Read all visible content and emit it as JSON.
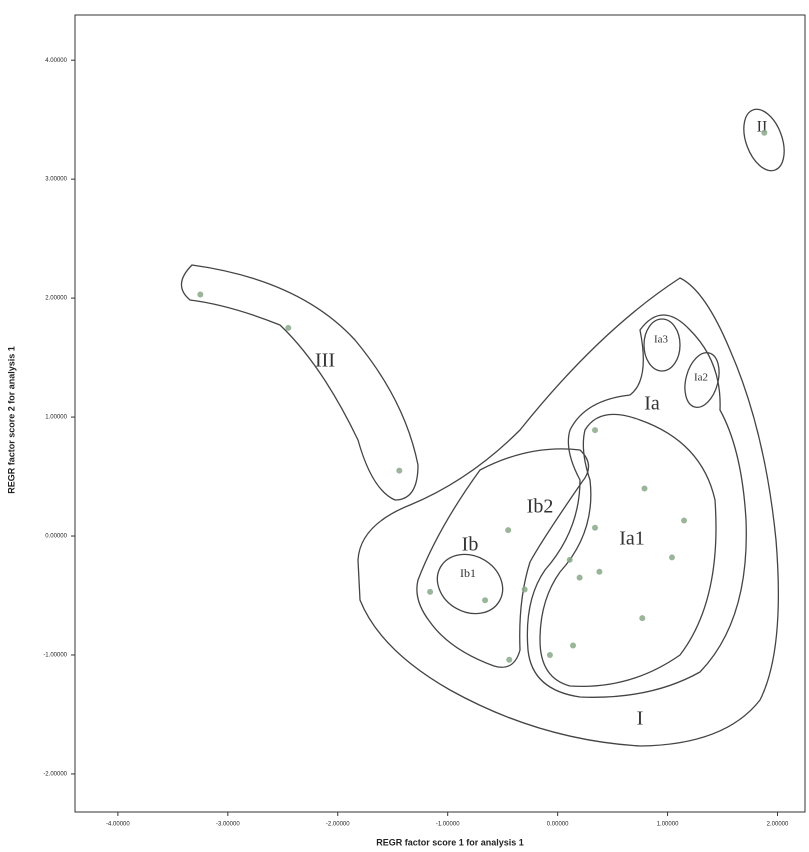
{
  "chart_data": {
    "type": "scatter",
    "x_label": "REGR factor score   1 for analysis 1",
    "y_label": "REGR factor score   2 for analysis 1",
    "x": [
      -3.25,
      -2.45,
      -1.44,
      1.88,
      0.34,
      0.79,
      1.15,
      1.04,
      -0.45,
      0.34,
      0.38,
      0.2,
      -0.66,
      -1.16,
      -0.3,
      0.77,
      0.14,
      -0.07,
      -0.44,
      0.11
    ],
    "values": [
      2.03,
      1.75,
      0.55,
      3.39,
      0.89,
      0.4,
      0.13,
      -0.18,
      0.05,
      0.07,
      -0.3,
      -0.35,
      -0.54,
      -0.47,
      -0.45,
      -0.69,
      -0.92,
      -1.0,
      -1.04,
      -0.2
    ],
    "color": "#8aa88a",
    "xlim": [
      -4.39,
      2.25
    ],
    "ylim": [
      -2.32,
      4.38
    ],
    "xticks": [
      {
        "value": -4,
        "label": "-4.00000"
      },
      {
        "value": -3,
        "label": "-3.00000"
      },
      {
        "value": -2,
        "label": "-2.00000"
      },
      {
        "value": -1,
        "label": "-1.00000"
      },
      {
        "value": 0,
        "label": "0.00000"
      },
      {
        "value": 1,
        "label": "1.00000"
      },
      {
        "value": 2,
        "label": "2.00000"
      }
    ],
    "yticks": [
      {
        "value": -2,
        "label": "-2.00000"
      },
      {
        "value": -1,
        "label": "-1.00000"
      },
      {
        "value": 0,
        "label": "0.00000"
      },
      {
        "value": 1,
        "label": "1.00000"
      },
      {
        "value": 2,
        "label": "2.00000"
      },
      {
        "value": 3,
        "label": "3.00000"
      },
      {
        "value": 4,
        "label": "4.00000"
      }
    ],
    "annotations": [
      "I",
      "III",
      "II",
      "Ia",
      "Ia1",
      "Ib",
      "Ib2",
      "Ib1",
      "Ia3",
      "Ia2"
    ]
  }
}
